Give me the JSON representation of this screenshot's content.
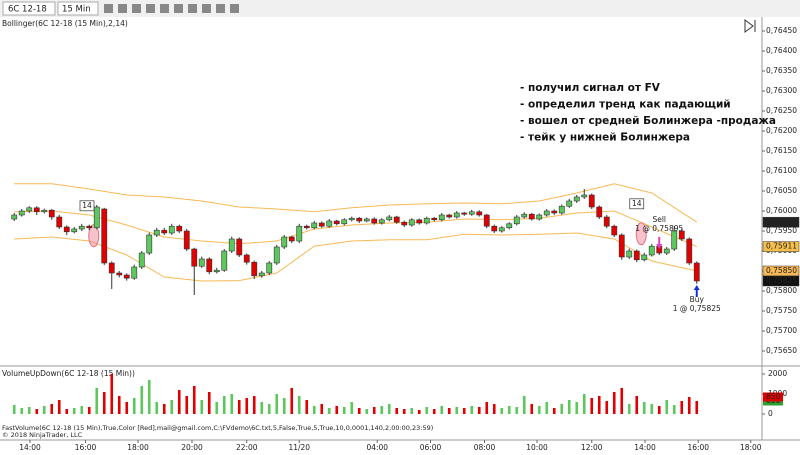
{
  "toolbar": {
    "instrument": "6C 12-18",
    "interval": "15 Min"
  },
  "chart_data": [
    {
      "type": "candlestick",
      "title": "Bollinger(6C 12-18 (15 Min),2,14)",
      "up_color": "#5cc85c",
      "down_color": "#e00000",
      "grid": false,
      "open": [
        0.7598,
        0.7599,
        0.76,
        0.76008,
        0.75998,
        0.76002,
        0.75985,
        0.7596,
        0.75948,
        0.75955,
        0.75962,
        0.75958,
        0.76005,
        0.7587,
        0.75845,
        0.7584,
        0.75832,
        0.7586,
        0.75895,
        0.7594,
        0.75952,
        0.75945,
        0.75962,
        0.7595,
        0.75905,
        0.75862,
        0.7588,
        0.75848,
        0.75852,
        0.759,
        0.7593,
        0.7589,
        0.75872,
        0.75838,
        0.75845,
        0.7587,
        0.7591,
        0.75935,
        0.75925,
        0.75962,
        0.75958,
        0.7597,
        0.75962,
        0.75975,
        0.75968,
        0.75978,
        0.75982,
        0.75975,
        0.7598,
        0.7597,
        0.75978,
        0.75985,
        0.75972,
        0.75965,
        0.75978,
        0.7597,
        0.75982,
        0.75978,
        0.7599,
        0.75985,
        0.75995,
        0.75992,
        0.75998,
        0.7599,
        0.75962,
        0.7595,
        0.75958,
        0.75968,
        0.75985,
        0.75992,
        0.7598,
        0.7599,
        0.76,
        0.75995,
        0.76012,
        0.76025,
        0.76035,
        0.7604,
        0.7601,
        0.75985,
        0.75962,
        0.7594,
        0.75885,
        0.759,
        0.75878,
        0.7589,
        0.75912,
        0.75895,
        0.75905,
        0.7595,
        0.7593,
        0.7587
      ],
      "high": [
        0.75995,
        0.76005,
        0.76012,
        0.76012,
        0.76006,
        0.76005,
        0.7599,
        0.75964,
        0.7596,
        0.75968,
        0.75966,
        0.76015,
        0.76008,
        0.75874,
        0.7585,
        0.75844,
        0.75866,
        0.759,
        0.75946,
        0.75958,
        0.75958,
        0.75968,
        0.75966,
        0.75955,
        0.75908,
        0.75886,
        0.75884,
        0.75858,
        0.75905,
        0.75936,
        0.75934,
        0.75894,
        0.75876,
        0.7585,
        0.75875,
        0.75915,
        0.7594,
        0.75938,
        0.75968,
        0.75966,
        0.75975,
        0.75974,
        0.7598,
        0.75978,
        0.75982,
        0.75986,
        0.75985,
        0.75984,
        0.75984,
        0.75982,
        0.7599,
        0.75988,
        0.75976,
        0.75982,
        0.75981,
        0.75986,
        0.75985,
        0.75995,
        0.75993,
        0.76,
        0.75998,
        0.76003,
        0.76002,
        0.75993,
        0.75966,
        0.75962,
        0.75972,
        0.7599,
        0.75997,
        0.75995,
        0.75994,
        0.76005,
        0.76004,
        0.76016,
        0.7603,
        0.7604,
        0.76055,
        0.76044,
        0.76014,
        0.7599,
        0.75966,
        0.75944,
        0.75906,
        0.75904,
        0.75896,
        0.75918,
        0.75916,
        0.7591,
        0.75962,
        0.75956,
        0.75934,
        0.75874
      ],
      "low": [
        0.75975,
        0.75986,
        0.75995,
        0.7599,
        0.75994,
        0.75978,
        0.75955,
        0.7594,
        0.75944,
        0.7595,
        0.75952,
        0.75954,
        0.75865,
        0.75805,
        0.75834,
        0.75826,
        0.75828,
        0.75855,
        0.7589,
        0.75935,
        0.7594,
        0.7594,
        0.75945,
        0.759,
        0.7579,
        0.75858,
        0.75842,
        0.75844,
        0.75848,
        0.75895,
        0.75885,
        0.75866,
        0.7583,
        0.75833,
        0.7584,
        0.75865,
        0.75905,
        0.7592,
        0.7592,
        0.75954,
        0.75954,
        0.75958,
        0.75958,
        0.75964,
        0.75964,
        0.75974,
        0.7597,
        0.75972,
        0.75966,
        0.75966,
        0.75974,
        0.75968,
        0.7596,
        0.75961,
        0.75966,
        0.75966,
        0.75974,
        0.75974,
        0.75981,
        0.75981,
        0.75988,
        0.75988,
        0.75986,
        0.75957,
        0.75945,
        0.75946,
        0.75954,
        0.75964,
        0.75981,
        0.75976,
        0.75976,
        0.75986,
        0.7599,
        0.75991,
        0.76008,
        0.7602,
        0.7603,
        0.76005,
        0.7598,
        0.75957,
        0.75935,
        0.75878,
        0.7588,
        0.75872,
        0.75874,
        0.75886,
        0.7589,
        0.7589,
        0.759,
        0.75925,
        0.75865,
        0.75818
      ],
      "close": [
        0.7599,
        0.76,
        0.76008,
        0.75998,
        0.76002,
        0.75985,
        0.7596,
        0.75948,
        0.75955,
        0.75962,
        0.75958,
        0.7601,
        0.7587,
        0.75845,
        0.7584,
        0.75832,
        0.7586,
        0.75895,
        0.7594,
        0.75952,
        0.75945,
        0.75962,
        0.7595,
        0.75905,
        0.75862,
        0.7588,
        0.75848,
        0.75852,
        0.759,
        0.7593,
        0.7589,
        0.75872,
        0.75838,
        0.75845,
        0.7587,
        0.7591,
        0.75935,
        0.75925,
        0.75962,
        0.75958,
        0.7597,
        0.75962,
        0.75975,
        0.75968,
        0.75978,
        0.75982,
        0.75975,
        0.7598,
        0.7597,
        0.75978,
        0.75985,
        0.75972,
        0.75965,
        0.75978,
        0.7597,
        0.75982,
        0.75978,
        0.7599,
        0.75985,
        0.75995,
        0.75992,
        0.75998,
        0.7599,
        0.75962,
        0.7595,
        0.75958,
        0.75968,
        0.75985,
        0.75992,
        0.7598,
        0.7599,
        0.76,
        0.75995,
        0.76012,
        0.76025,
        0.76035,
        0.7604,
        0.7601,
        0.75985,
        0.75962,
        0.7594,
        0.75885,
        0.759,
        0.75878,
        0.7589,
        0.75912,
        0.75895,
        0.75905,
        0.7595,
        0.7593,
        0.7587,
        0.75825
      ],
      "bands": [
        {
          "color": "#f7b955",
          "x": [
            0,
            5,
            10,
            15,
            20,
            25,
            30,
            35,
            40,
            45,
            50,
            55,
            60,
            65,
            70,
            75,
            80,
            85,
            91
          ],
          "values": [
            0.76068,
            0.76068,
            0.76055,
            0.7604,
            0.76035,
            0.76025,
            0.7601,
            0.76005,
            0.75998,
            0.76008,
            0.76015,
            0.76018,
            0.7602,
            0.76018,
            0.76025,
            0.76045,
            0.76068,
            0.76045,
            0.75972
          ]
        },
        {
          "color": "#f7b955",
          "x": [
            0,
            5,
            10,
            15,
            20,
            25,
            30,
            35,
            40,
            45,
            50,
            55,
            60,
            65,
            70,
            75,
            80,
            85,
            91
          ],
          "values": [
            0.75998,
            0.76,
            0.7599,
            0.75965,
            0.75935,
            0.75925,
            0.75918,
            0.75925,
            0.75955,
            0.75965,
            0.7597,
            0.75972,
            0.7598,
            0.75978,
            0.75982,
            0.75995,
            0.76,
            0.7596,
            0.75911
          ]
        },
        {
          "color": "#f7b955",
          "x": [
            0,
            5,
            10,
            15,
            20,
            25,
            30,
            35,
            40,
            45,
            50,
            55,
            60,
            65,
            70,
            75,
            80,
            85,
            91
          ],
          "values": [
            0.7593,
            0.75935,
            0.75925,
            0.7589,
            0.75835,
            0.75825,
            0.75826,
            0.75845,
            0.75912,
            0.75925,
            0.75928,
            0.75928,
            0.75942,
            0.7594,
            0.75942,
            0.75945,
            0.7593,
            0.75875,
            0.7585
          ]
        }
      ],
      "xlim": [
        -1.9,
        99.7
      ],
      "xticks": [
        {
          "value": 2.1,
          "label": "14:00"
        },
        {
          "value": 9.5,
          "label": "16:00"
        },
        {
          "value": 16.5,
          "label": "18:00"
        },
        {
          "value": 23.7,
          "label": "20:00"
        },
        {
          "value": 31,
          "label": "22:00"
        },
        {
          "value": 38,
          "label": "11/20"
        },
        {
          "value": 48.4,
          "label": "04:00"
        },
        {
          "value": 55.5,
          "label": "06:00"
        },
        {
          "value": 62.7,
          "label": "08:00"
        },
        {
          "value": 69.7,
          "label": "10:00"
        },
        {
          "value": 77,
          "label": "12:00"
        },
        {
          "value": 84.1,
          "label": "14:00"
        },
        {
          "value": 91.2,
          "label": "16:00"
        },
        {
          "value": 98.2,
          "label": "18:00"
        }
      ],
      "ylim": [
        0.75615,
        0.76485
      ],
      "yticks": [
        {
          "value": 0.7565,
          "label": "0,75650"
        },
        {
          "value": 0.757,
          "label": "0,75700"
        },
        {
          "value": 0.7575,
          "label": "0,75750"
        },
        {
          "value": 0.758,
          "label": "0,75800"
        },
        {
          "value": 0.7585,
          "label": "0,75850"
        },
        {
          "value": 0.759,
          "label": "0,75900"
        },
        {
          "value": 0.7595,
          "label": "0,75950"
        },
        {
          "value": 0.76,
          "label": "0,76000"
        },
        {
          "value": 0.7605,
          "label": "0,76050"
        },
        {
          "value": 0.761,
          "label": "0,76100"
        },
        {
          "value": 0.7615,
          "label": "0,76150"
        },
        {
          "value": 0.762,
          "label": "0,76200"
        },
        {
          "value": 0.7625,
          "label": "0,76250"
        },
        {
          "value": 0.763,
          "label": "0,76300"
        },
        {
          "value": 0.7635,
          "label": "0,76350"
        },
        {
          "value": 0.764,
          "label": "0,76400"
        },
        {
          "value": 0.7645,
          "label": "0,76450"
        }
      ],
      "price_markers": [
        {
          "value": 0.75972,
          "label": "0,75972",
          "color": "#222222"
        },
        {
          "value": 0.75911,
          "label": "0,75911",
          "color": "#f7c04a"
        },
        {
          "value": 0.7585,
          "label": "0,75850",
          "color": "#f7b955"
        },
        {
          "value": 0.75825,
          "label": "0,75825",
          "color": "#111111"
        }
      ],
      "period_labels": [
        {
          "text": "14",
          "x": 9.7,
          "y": 0.76013
        },
        {
          "text": "14",
          "x": 83,
          "y": 0.76018
        }
      ],
      "signals": [
        {
          "x": 10.6,
          "y": 0.75938
        },
        {
          "x": 83.6,
          "y": 0.75943
        }
      ],
      "trades": [
        {
          "text": "Sell",
          "detail": "1 @ 0,75895",
          "x": 86,
          "y": 0.75895,
          "color": "#e040c0"
        },
        {
          "text": "Buy",
          "detail": "1 @ 0,75825",
          "x": 91,
          "y": 0.75825,
          "color": "#1030e0"
        }
      ],
      "notes": [
        "- получил сигнал от FV",
        "- определил тренд как падающий",
        "- вошел от средней Болинжера -продажа",
        "- тейк у нижней Болинжера"
      ]
    },
    {
      "type": "bar",
      "title": "VolumeUpDown(6C 12-18 (15 Min))",
      "up_color": "#5cc85c",
      "down_color": "#e00000",
      "values": [
        450,
        300,
        350,
        250,
        400,
        500,
        700,
        250,
        300,
        400,
        350,
        1300,
        1100,
        2000,
        900,
        600,
        800,
        1400,
        1700,
        600,
        500,
        700,
        1200,
        900,
        1400,
        700,
        1100,
        600,
        900,
        1000,
        700,
        800,
        900,
        600,
        500,
        1000,
        800,
        1300,
        900,
        700,
        400,
        500,
        300,
        400,
        350,
        600,
        300,
        250,
        350,
        400,
        500,
        300,
        250,
        300,
        200,
        350,
        250,
        400,
        300,
        350,
        300,
        400,
        350,
        600,
        500,
        300,
        400,
        350,
        900,
        500,
        400,
        600,
        300,
        500,
        700,
        600,
        1000,
        800,
        900,
        650,
        1100,
        1300,
        500,
        900,
        600,
        500,
        400,
        700,
        450,
        650,
        850,
        650
      ],
      "xlim": [
        -1.9,
        99.7
      ],
      "ylim": [
        0,
        2300
      ],
      "yticks": [
        0,
        1000,
        2000
      ],
      "value_markers": [
        {
          "value": 650,
          "color": "#2ea02e"
        },
        {
          "value": 850,
          "color": "#e00000"
        }
      ]
    }
  ],
  "footer": {
    "indicator": "FastVolume(6C 12-18 (15 Min),True,Color [Red],mail@gmail.com,C:\\FVdemo\\6C.txt,5,False,True,5,True,10,0,0001,140,2,00:00,23:59)",
    "copyright": "© 2018 NinjaTrader, LLC"
  }
}
